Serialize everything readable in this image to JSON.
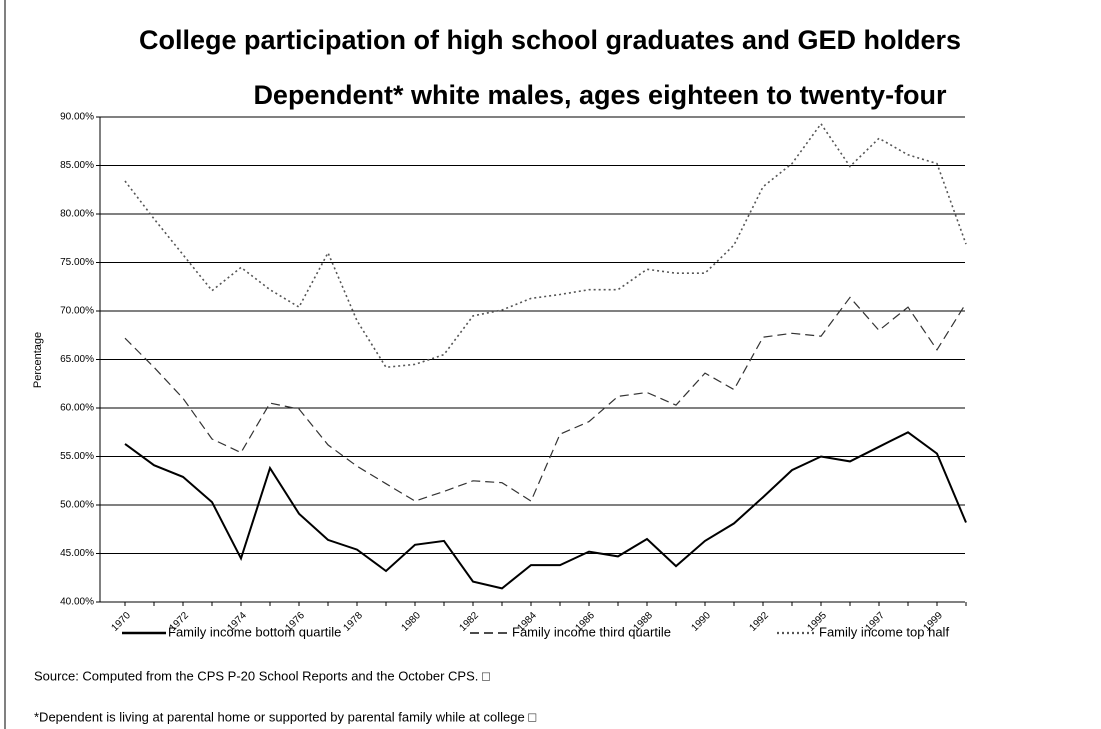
{
  "chart_data": {
    "type": "line",
    "title": "College participation of high school graduates and GED holders",
    "subtitle": "Dependent* white males, ages eighteen to twenty-four",
    "y_label": "Percentage",
    "categories": [
      "1970",
      null,
      "1972",
      null,
      "1974",
      null,
      "1976",
      null,
      "1978",
      null,
      "1980",
      null,
      "1982",
      null,
      "1984",
      null,
      "1986",
      null,
      "1988",
      null,
      "1990",
      null,
      "1992",
      null,
      "1995",
      null,
      "1997",
      null,
      "1999",
      null
    ],
    "series": [
      {
        "name": "Family income bottom quartile",
        "color": "#000000",
        "line_style": "solid",
        "values": [
          56.3,
          54.1,
          52.9,
          50.3,
          44.5,
          53.8,
          49.1,
          46.4,
          45.4,
          43.2,
          45.9,
          46.3,
          42.1,
          41.4,
          43.8,
          43.8,
          45.2,
          44.7,
          46.5,
          43.7,
          46.3,
          48.1,
          50.8,
          53.6,
          55.0,
          54.5,
          56.0,
          57.5,
          55.3,
          48.2
        ]
      },
      {
        "name": "Family income third quartile",
        "color": "#333333",
        "line_style": "dashed",
        "values": [
          67.2,
          64.2,
          61.0,
          56.8,
          55.4,
          60.5,
          59.9,
          56.2,
          54.0,
          52.2,
          50.4,
          51.4,
          52.5,
          52.3,
          50.4,
          57.3,
          58.6,
          61.2,
          61.6,
          60.3,
          63.6,
          61.9,
          67.3,
          67.7,
          67.4,
          71.4,
          68.0,
          70.4,
          66.0,
          70.8
        ]
      },
      {
        "name": "Family income top half",
        "color": "#555555",
        "line_style": "dotted",
        "values": [
          83.4,
          79.5,
          75.8,
          72.1,
          74.5,
          72.2,
          70.4,
          76.0,
          69.0,
          64.2,
          64.5,
          65.5,
          69.5,
          70.1,
          71.3,
          71.7,
          72.2,
          72.2,
          74.3,
          73.9,
          73.9,
          76.8,
          82.8,
          85.2,
          89.3,
          84.9,
          87.8,
          86.1,
          85.2,
          76.9
        ]
      }
    ],
    "ylim": [
      40,
      90
    ],
    "yticks": [
      {
        "value": 40,
        "label": "40.00%"
      },
      {
        "value": 45,
        "label": "45.00%"
      },
      {
        "value": 50,
        "label": "50.00%"
      },
      {
        "value": 55,
        "label": "55.00%"
      },
      {
        "value": 60,
        "label": "60.00%"
      },
      {
        "value": 65,
        "label": "65.00%"
      },
      {
        "value": 70,
        "label": "70.00%"
      },
      {
        "value": 75,
        "label": "75.00%"
      },
      {
        "value": 80,
        "label": "80.00%"
      },
      {
        "value": 85,
        "label": "85.00%"
      },
      {
        "value": 90,
        "label": "90.00%"
      }
    ],
    "grid": true,
    "legend": "bottom",
    "notes": [
      "Source:  Computed from the CPS P-20 School Reports and the October CPS.  □",
      "*Dependent is living at parental home or supported by parental family while at college □"
    ]
  }
}
